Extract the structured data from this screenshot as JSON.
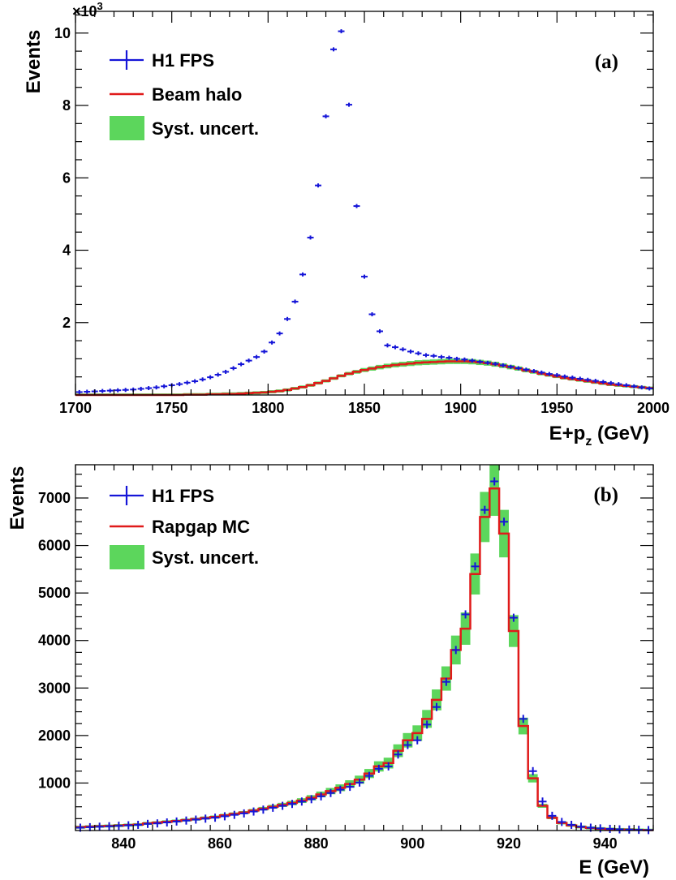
{
  "colors": {
    "data": "#1515d8",
    "model": "#e01a1a",
    "band": "#5cd65c",
    "axis": "#000000"
  },
  "chart_data": [
    {
      "type": "line",
      "panel_label": "(a)",
      "xlabel": "E+p",
      "xlabel_sub": "z",
      "xlabel_unit": " (GeV)",
      "ylabel": "Events",
      "y_exponent_label": "×10",
      "y_exponent_power": "3",
      "xlim": [
        1700,
        2000
      ],
      "ylim": [
        0,
        10.6
      ],
      "xticks": [
        1700,
        1750,
        1800,
        1850,
        1900,
        1950,
        2000
      ],
      "yticks": [
        2,
        4,
        6,
        8,
        10
      ],
      "legend": [
        {
          "label": "H1 FPS",
          "style": "data"
        },
        {
          "label": "Beam halo",
          "style": "model"
        },
        {
          "label": "Syst. uncert.",
          "style": "band"
        }
      ],
      "series": [
        {
          "name": "H1 FPS",
          "kind": "markers",
          "x": [
            1702,
            1706,
            1710,
            1714,
            1718,
            1722,
            1726,
            1730,
            1734,
            1738,
            1742,
            1746,
            1750,
            1754,
            1758,
            1762,
            1766,
            1770,
            1774,
            1778,
            1782,
            1786,
            1790,
            1794,
            1798,
            1802,
            1806,
            1810,
            1814,
            1818,
            1822,
            1826,
            1830,
            1834,
            1838,
            1842,
            1846,
            1850,
            1854,
            1858,
            1862,
            1866,
            1870,
            1874,
            1878,
            1882,
            1886,
            1890,
            1894,
            1898,
            1902,
            1906,
            1910,
            1914,
            1918,
            1922,
            1926,
            1930,
            1934,
            1938,
            1942,
            1946,
            1950,
            1954,
            1958,
            1962,
            1966,
            1970,
            1974,
            1978,
            1982,
            1986,
            1990,
            1994,
            1998
          ],
          "y": [
            0.08,
            0.09,
            0.1,
            0.11,
            0.12,
            0.13,
            0.14,
            0.15,
            0.17,
            0.19,
            0.21,
            0.24,
            0.27,
            0.3,
            0.34,
            0.38,
            0.43,
            0.49,
            0.56,
            0.64,
            0.74,
            0.85,
            0.95,
            1.05,
            1.2,
            1.45,
            1.7,
            2.1,
            2.58,
            3.33,
            4.35,
            5.79,
            7.7,
            9.55,
            10.05,
            8.02,
            5.22,
            3.27,
            2.23,
            1.76,
            1.37,
            1.32,
            1.26,
            1.2,
            1.15,
            1.1,
            1.08,
            1.05,
            1.03,
            1.0,
            0.98,
            0.95,
            0.92,
            0.89,
            0.86,
            0.82,
            0.78,
            0.74,
            0.7,
            0.66,
            0.62,
            0.58,
            0.55,
            0.51,
            0.48,
            0.45,
            0.42,
            0.39,
            0.36,
            0.33,
            0.3,
            0.27,
            0.24,
            0.21,
            0.18
          ]
        },
        {
          "name": "Beam halo",
          "kind": "step",
          "x": [
            1702,
            1706,
            1710,
            1714,
            1718,
            1722,
            1726,
            1730,
            1734,
            1738,
            1742,
            1746,
            1750,
            1754,
            1758,
            1762,
            1766,
            1770,
            1774,
            1778,
            1782,
            1786,
            1790,
            1794,
            1798,
            1802,
            1806,
            1810,
            1814,
            1818,
            1822,
            1826,
            1830,
            1834,
            1838,
            1842,
            1846,
            1850,
            1854,
            1858,
            1862,
            1866,
            1870,
            1874,
            1878,
            1882,
            1886,
            1890,
            1894,
            1898,
            1902,
            1906,
            1910,
            1914,
            1918,
            1922,
            1926,
            1930,
            1934,
            1938,
            1942,
            1946,
            1950,
            1954,
            1958,
            1962,
            1966,
            1970,
            1974,
            1978,
            1982,
            1986,
            1990,
            1994,
            1998
          ],
          "y": [
            0.0,
            0.0,
            0.0,
            0.0,
            0.0,
            0.0,
            0.0,
            0.0,
            0.0,
            0.0,
            0.0,
            0.0,
            0.0,
            0.0,
            0.01,
            0.01,
            0.01,
            0.02,
            0.02,
            0.03,
            0.03,
            0.04,
            0.05,
            0.06,
            0.07,
            0.09,
            0.11,
            0.14,
            0.18,
            0.22,
            0.27,
            0.33,
            0.39,
            0.46,
            0.53,
            0.59,
            0.64,
            0.69,
            0.73,
            0.77,
            0.8,
            0.83,
            0.85,
            0.87,
            0.89,
            0.9,
            0.91,
            0.92,
            0.93,
            0.93,
            0.93,
            0.92,
            0.9,
            0.88,
            0.85,
            0.81,
            0.77,
            0.73,
            0.68,
            0.64,
            0.59,
            0.55,
            0.51,
            0.47,
            0.44,
            0.41,
            0.38,
            0.35,
            0.32,
            0.29,
            0.27,
            0.25,
            0.23,
            0.21,
            0.19
          ]
        },
        {
          "name": "Syst. uncert.",
          "kind": "band",
          "relative_width": 0.08
        }
      ]
    },
    {
      "type": "line",
      "panel_label": "(b)",
      "xlabel": "E (GeV)",
      "ylabel": "Events",
      "xlim": [
        830,
        950
      ],
      "ylim": [
        0,
        7700
      ],
      "xticks": [
        840,
        860,
        880,
        900,
        920,
        940
      ],
      "yticks": [
        1000,
        2000,
        3000,
        4000,
        5000,
        6000,
        7000
      ],
      "legend": [
        {
          "label": "H1 FPS",
          "style": "data"
        },
        {
          "label": "Rapgap MC",
          "style": "model"
        },
        {
          "label": "Syst. uncert.",
          "style": "band"
        }
      ],
      "series": [
        {
          "name": "H1 FPS",
          "kind": "markers",
          "x": [
            831,
            833,
            835,
            837,
            839,
            841,
            843,
            845,
            847,
            849,
            851,
            853,
            855,
            857,
            859,
            861,
            863,
            865,
            867,
            869,
            871,
            873,
            875,
            877,
            879,
            881,
            883,
            885,
            887,
            889,
            891,
            893,
            895,
            897,
            899,
            901,
            903,
            905,
            907,
            909,
            911,
            913,
            915,
            917,
            919,
            921,
            923,
            925,
            927,
            929,
            931,
            933,
            935,
            937,
            939,
            941,
            943,
            945,
            947,
            949
          ],
          "y": [
            60,
            70,
            80,
            90,
            100,
            110,
            120,
            140,
            150,
            170,
            190,
            210,
            230,
            250,
            270,
            300,
            330,
            360,
            400,
            440,
            480,
            520,
            560,
            610,
            660,
            720,
            790,
            860,
            920,
            1010,
            1150,
            1300,
            1350,
            1600,
            1800,
            1900,
            2230,
            2600,
            3130,
            3800,
            4550,
            5560,
            6750,
            7350,
            6500,
            4480,
            2350,
            1250,
            610,
            310,
            180,
            120,
            80,
            60,
            45,
            35,
            25,
            20,
            15,
            10
          ]
        },
        {
          "name": "Rapgap MC",
          "kind": "step",
          "x": [
            831,
            833,
            835,
            837,
            839,
            841,
            843,
            845,
            847,
            849,
            851,
            853,
            855,
            857,
            859,
            861,
            863,
            865,
            867,
            869,
            871,
            873,
            875,
            877,
            879,
            881,
            883,
            885,
            887,
            889,
            891,
            893,
            895,
            897,
            899,
            901,
            903,
            905,
            907,
            909,
            911,
            913,
            915,
            917,
            919,
            921,
            923,
            925,
            927,
            929,
            931,
            933,
            935,
            937,
            939,
            941,
            943,
            945,
            947,
            949
          ],
          "y": [
            70,
            80,
            90,
            95,
            105,
            115,
            125,
            150,
            165,
            185,
            200,
            220,
            240,
            265,
            285,
            320,
            350,
            380,
            420,
            460,
            500,
            540,
            580,
            630,
            690,
            760,
            830,
            900,
            980,
            1070,
            1200,
            1350,
            1420,
            1680,
            1900,
            2050,
            2350,
            2750,
            3200,
            3800,
            4250,
            5400,
            6600,
            7200,
            6250,
            4200,
            2200,
            1100,
            520,
            270,
            160,
            110,
            75,
            55,
            40,
            30,
            22,
            18,
            12,
            8
          ]
        },
        {
          "name": "Syst. uncert.",
          "kind": "band",
          "relative_width": 0.08
        }
      ]
    }
  ]
}
